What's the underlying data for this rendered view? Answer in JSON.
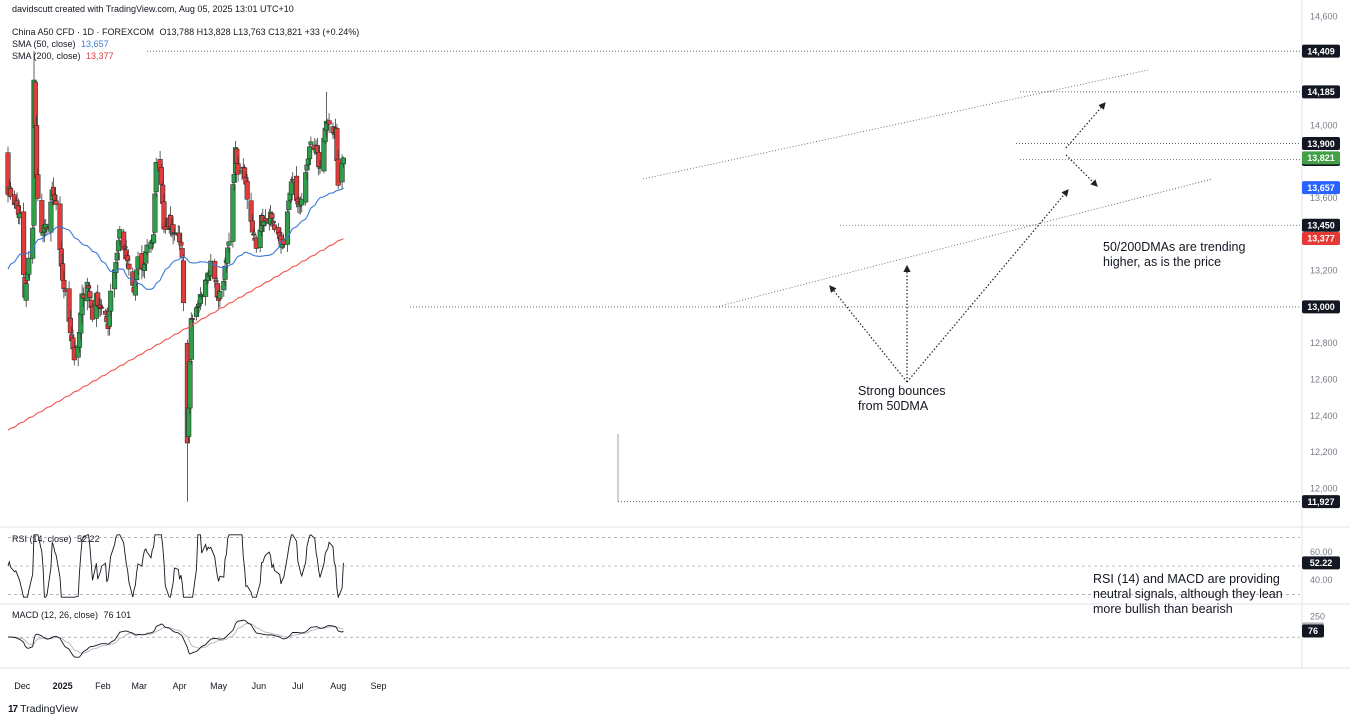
{
  "header": {
    "created_by": "davidscutt created with TradingView.com, Aug 05, 2025 13:01 UTC+10",
    "symbol_line": "China A50 CFD · 1D · FOREXCOM",
    "ohlc": "O13,788  H13,828  L13,763  C13,821  +33 (+0.24%)",
    "sma50_label": "SMA (50, close)",
    "sma50_value": "13,657",
    "sma200_label": "SMA (200, close)",
    "sma200_value": "13,377",
    "rsi_label": "RSI (14, close)",
    "rsi_value": "52.22",
    "macd_label": "MACD (12, 26, close)",
    "macd_values": "76  101"
  },
  "annotations": {
    "dma_note_line1": "50/200DMAs are trending",
    "dma_note_line2": "higher, as is the price",
    "bounce_line1": "Strong bounces",
    "bounce_line2": "from 50DMA",
    "rsi_note_line1": "RSI (14) and MACD are providing",
    "rsi_note_line2": "neutral signals, although they lean",
    "rsi_note_line3": "more bullish than bearish"
  },
  "footer": {
    "brand": "TradingView",
    "brand_mark": "17"
  },
  "colors": {
    "up": "#26a69a",
    "up_body": "#2e9e4a",
    "down": "#e03c3c",
    "sma50": "#3b78d8",
    "sma200": "#ef5350",
    "rsi": "#131722",
    "macd": "#131722",
    "signal": "#b2b5be",
    "price_badge": "#43a047",
    "sma50_badge": "#2962ff",
    "sma200_badge": "#e53935",
    "level_badge": "#131722"
  },
  "chart_data": {
    "type": "candlestick",
    "title": "China A50 CFD · 1D · FOREXCOM",
    "x_ticks": [
      "Dec",
      "2025",
      "Feb",
      "Mar",
      "Apr",
      "May",
      "Jun",
      "Jul",
      "Aug",
      "Sep"
    ],
    "y_ticks": [
      12000,
      12200,
      12400,
      12600,
      12800,
      13000,
      13200,
      13400,
      13600,
      13800,
      14000,
      14200,
      14400,
      14600
    ],
    "y_range": [
      11850,
      14650
    ],
    "price_levels": [
      {
        "label": "14,409",
        "value": 14409
      },
      {
        "label": "14,185",
        "value": 14185
      },
      {
        "label": "13,900",
        "value": 13900
      },
      {
        "label": "13,812",
        "value": 13812
      },
      {
        "label": "13,450",
        "value": 13450
      },
      {
        "label": "13,000",
        "value": 13000
      },
      {
        "label": "11,927",
        "value": 11927
      }
    ],
    "last_price": {
      "label": "13,821",
      "value": 13821
    },
    "sma50_last": {
      "label": "13,657",
      "value": 13657
    },
    "sma200_last": {
      "label": "13,377",
      "value": 13377
    },
    "close_anchors": [
      [
        "2024-11-20",
        13650
      ],
      [
        "2024-11-25",
        13580
      ],
      [
        "2024-11-29",
        13500
      ],
      [
        "2024-12-03",
        13050
      ],
      [
        "2024-12-06",
        13250
      ],
      [
        "2024-12-09",
        13450
      ],
      [
        "2024-12-10",
        14250
      ],
      [
        "2024-12-12",
        13700
      ],
      [
        "2024-12-16",
        13400
      ],
      [
        "2024-12-20",
        13450
      ],
      [
        "2024-12-24",
        13620
      ],
      [
        "2024-12-27",
        13560
      ],
      [
        "2024-12-31",
        13200
      ],
      [
        "2025-01-06",
        12930
      ],
      [
        "2025-01-10",
        12720
      ],
      [
        "2025-01-13",
        12760
      ],
      [
        "2025-01-16",
        13050
      ],
      [
        "2025-01-20",
        13150
      ],
      [
        "2025-01-24",
        12950
      ],
      [
        "2025-01-27",
        13050
      ],
      [
        "2025-02-05",
        12900
      ],
      [
        "2025-02-07",
        13100
      ],
      [
        "2025-02-11",
        13250
      ],
      [
        "2025-02-14",
        13420
      ],
      [
        "2025-02-18",
        13300
      ],
      [
        "2025-02-21",
        13200
      ],
      [
        "2025-02-25",
        13080
      ],
      [
        "2025-02-28",
        13250
      ],
      [
        "2025-03-04",
        13200
      ],
      [
        "2025-03-07",
        13350
      ],
      [
        "2025-03-12",
        13380
      ],
      [
        "2025-03-14",
        13820
      ],
      [
        "2025-03-18",
        13700
      ],
      [
        "2025-03-20",
        13450
      ],
      [
        "2025-03-24",
        13460
      ],
      [
        "2025-03-27",
        13420
      ],
      [
        "2025-04-01",
        13380
      ],
      [
        "2025-04-03",
        13250
      ],
      [
        "2025-04-07",
        12250
      ],
      [
        "2025-04-08",
        12420
      ],
      [
        "2025-04-10",
        12950
      ],
      [
        "2025-04-14",
        13010
      ],
      [
        "2025-04-18",
        13080
      ],
      [
        "2025-04-22",
        13150
      ],
      [
        "2025-04-25",
        13230
      ],
      [
        "2025-04-29",
        13150
      ],
      [
        "2025-04-30",
        13030
      ],
      [
        "2025-05-06",
        13200
      ],
      [
        "2025-05-08",
        13300
      ],
      [
        "2025-05-12",
        13650
      ],
      [
        "2025-05-14",
        13850
      ],
      [
        "2025-05-16",
        13720
      ],
      [
        "2025-05-20",
        13780
      ],
      [
        "2025-05-23",
        13620
      ],
      [
        "2025-05-27",
        13400
      ],
      [
        "2025-05-30",
        13350
      ],
      [
        "2025-06-03",
        13480
      ],
      [
        "2025-06-06",
        13450
      ],
      [
        "2025-06-10",
        13500
      ],
      [
        "2025-06-13",
        13400
      ],
      [
        "2025-06-17",
        13380
      ],
      [
        "2025-06-20",
        13320
      ],
      [
        "2025-06-24",
        13600
      ],
      [
        "2025-06-27",
        13700
      ],
      [
        "2025-07-01",
        13560
      ],
      [
        "2025-07-04",
        13580
      ],
      [
        "2025-07-08",
        13800
      ],
      [
        "2025-07-11",
        13880
      ],
      [
        "2025-07-15",
        13850
      ],
      [
        "2025-07-18",
        13760
      ],
      [
        "2025-07-21",
        13950
      ],
      [
        "2025-07-23",
        14020
      ],
      [
        "2025-07-25",
        13980
      ],
      [
        "2025-07-28",
        13960
      ],
      [
        "2025-07-30",
        13990
      ],
      [
        "2025-08-01",
        13660
      ],
      [
        "2025-08-04",
        13788
      ],
      [
        "2025-08-05",
        13821
      ]
    ],
    "rsi": {
      "range": [
        30,
        70
      ],
      "ticks": [
        40.0,
        60.0
      ],
      "last": 52.22
    },
    "macd": {
      "ticks": [
        250
      ],
      "last_macd": 76,
      "last_signal": 101
    }
  }
}
